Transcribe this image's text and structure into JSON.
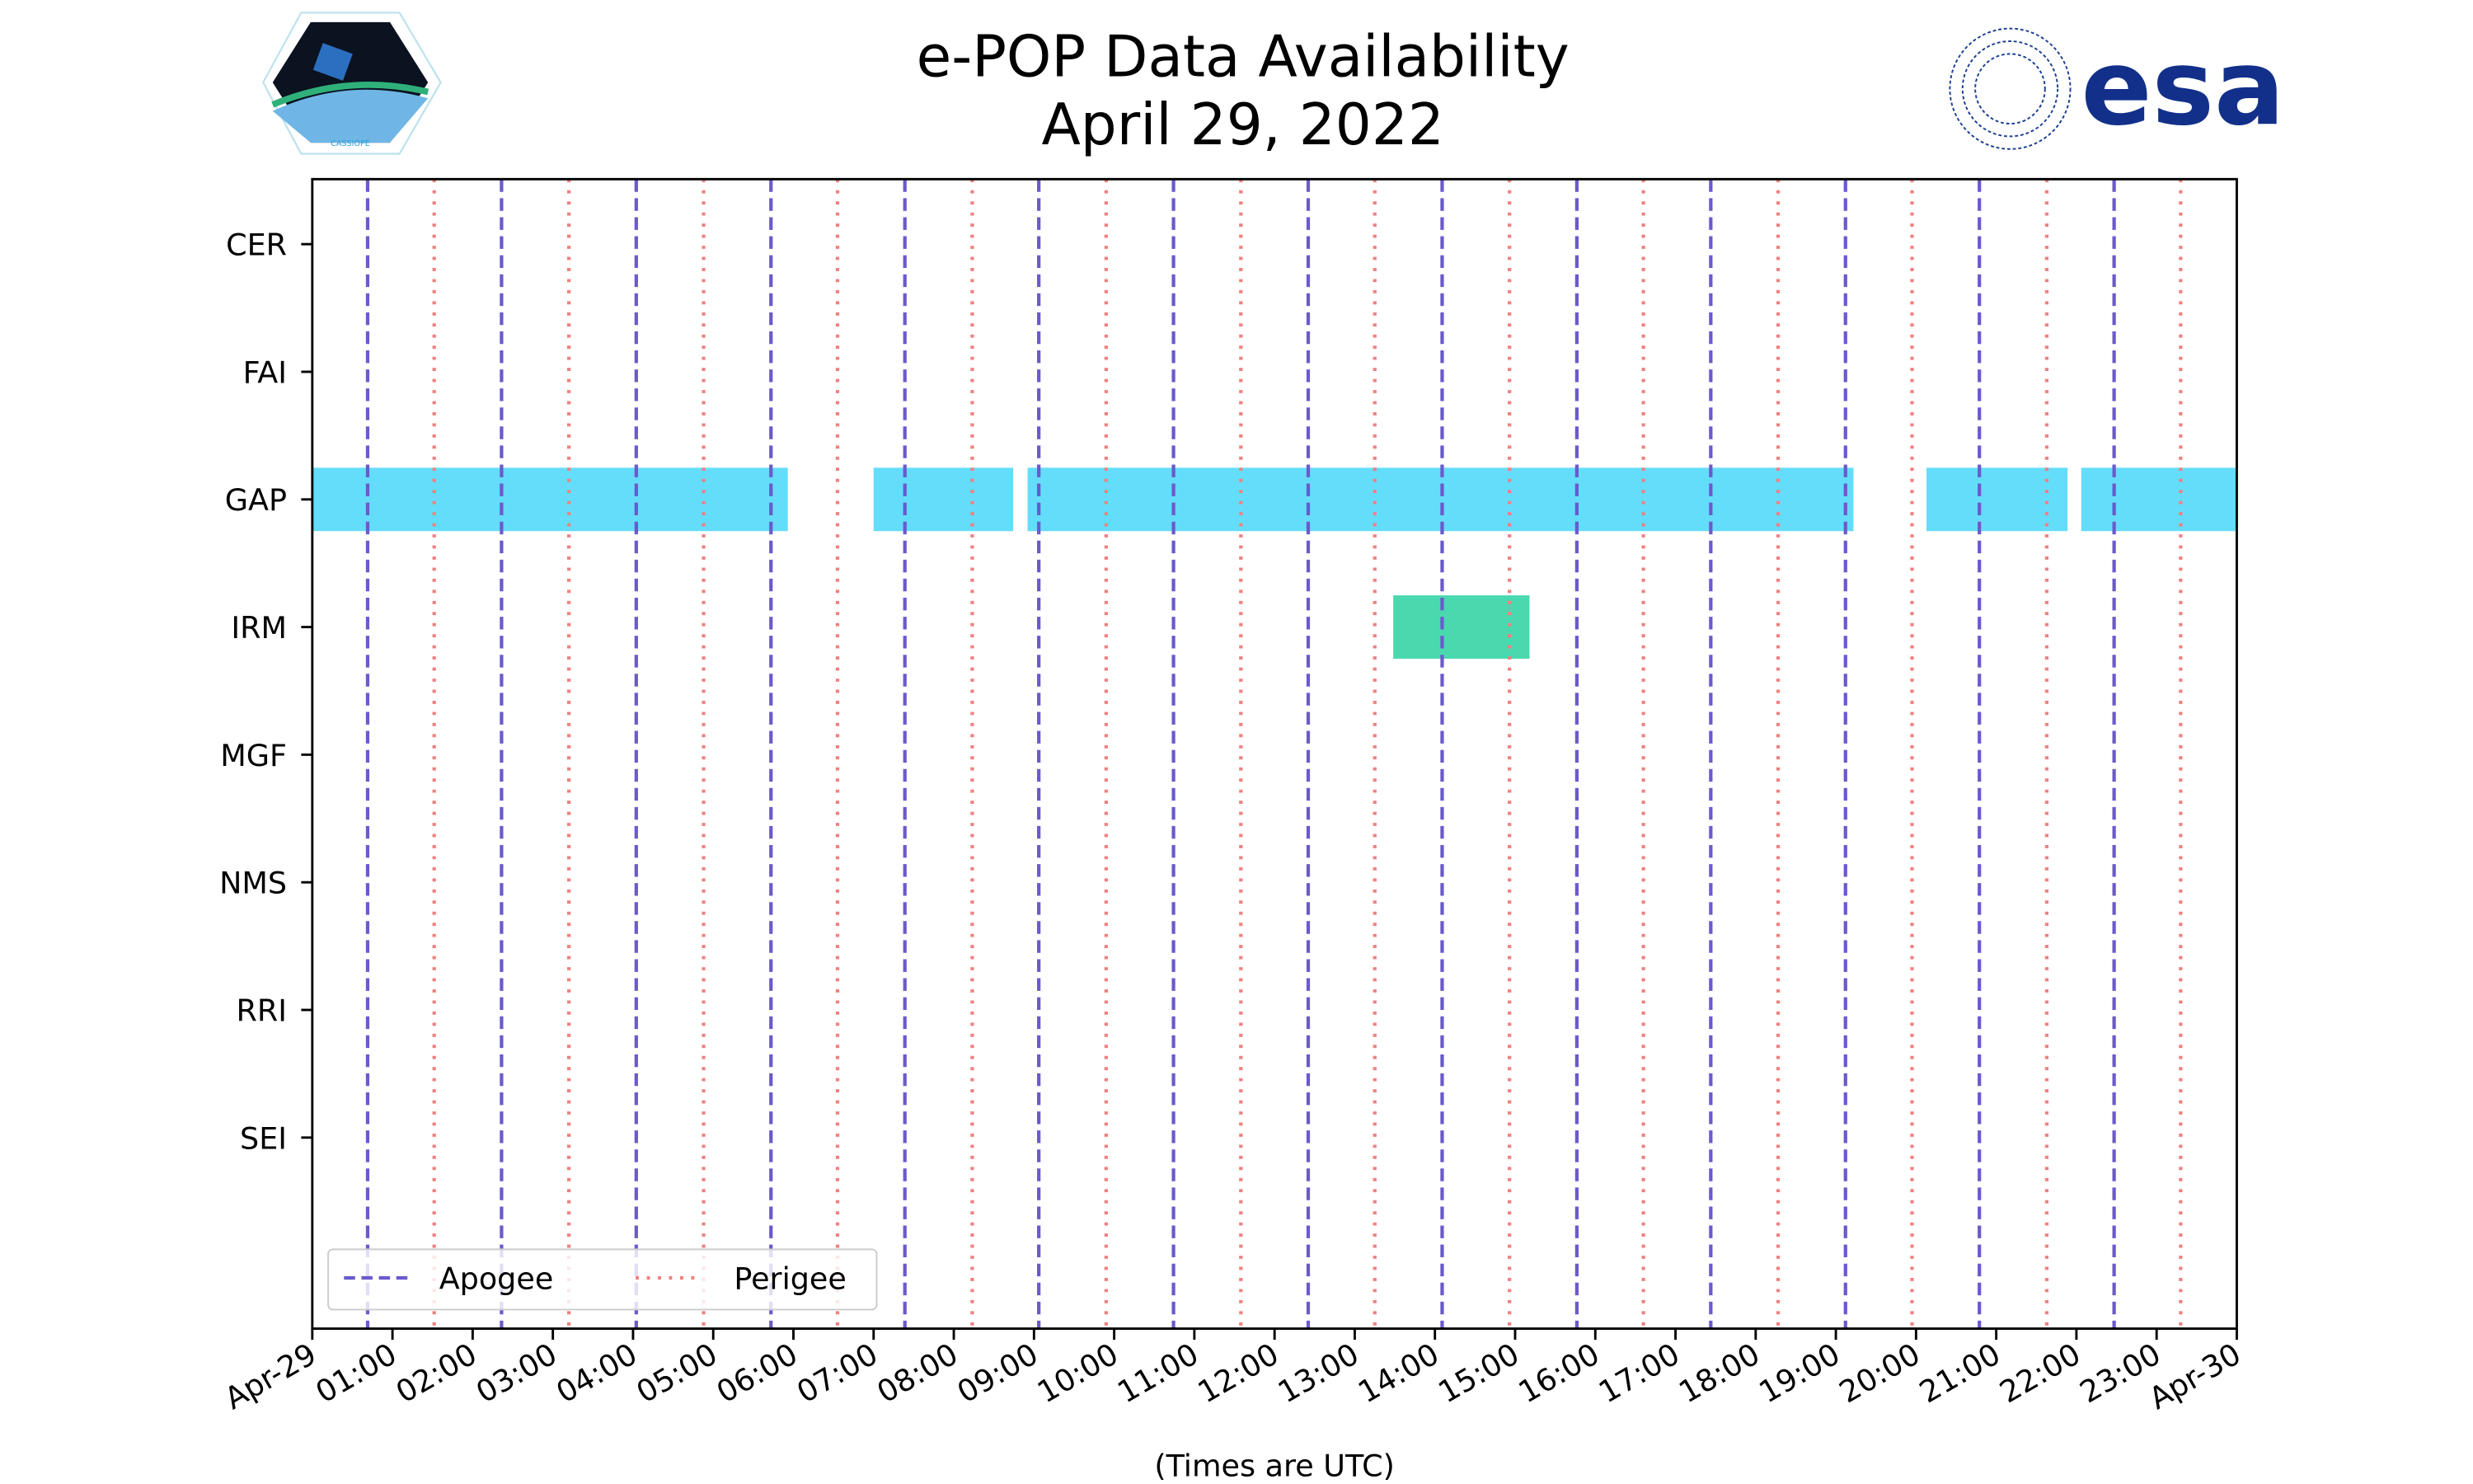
{
  "chart_data": {
    "type": "timeline",
    "title": "e-POP Data Availability",
    "subtitle": "April 29, 2022",
    "xlabel": "(Times are UTC)",
    "xlim_hours": [
      0,
      24
    ],
    "x_tick_labels": [
      "Apr-29",
      "01:00",
      "02:00",
      "03:00",
      "04:00",
      "05:00",
      "06:00",
      "07:00",
      "08:00",
      "09:00",
      "10:00",
      "11:00",
      "12:00",
      "13:00",
      "14:00",
      "15:00",
      "16:00",
      "17:00",
      "18:00",
      "19:00",
      "20:00",
      "21:00",
      "22:00",
      "23:00",
      "Apr-30"
    ],
    "instruments": [
      "CER",
      "FAI",
      "GAP",
      "IRM",
      "MGF",
      "NMS",
      "RRI",
      "SEI"
    ],
    "availability": [
      {
        "instrument": "GAP",
        "start_h": 0.0,
        "end_h": 5.93,
        "color": "#4dd8fa"
      },
      {
        "instrument": "GAP",
        "start_h": 7.0,
        "end_h": 8.74,
        "color": "#4dd8fa"
      },
      {
        "instrument": "GAP",
        "start_h": 8.92,
        "end_h": 19.22,
        "color": "#4dd8fa"
      },
      {
        "instrument": "GAP",
        "start_h": 20.13,
        "end_h": 21.89,
        "color": "#4dd8fa"
      },
      {
        "instrument": "GAP",
        "start_h": 22.06,
        "end_h": 24.0,
        "color": "#4dd8fa"
      },
      {
        "instrument": "IRM",
        "start_h": 13.48,
        "end_h": 15.18,
        "color": "#2fd3a3"
      }
    ],
    "apogee_hours": [
      0.69,
      2.36,
      4.04,
      5.72,
      7.39,
      9.06,
      10.74,
      12.42,
      14.09,
      15.77,
      17.44,
      19.12,
      20.79,
      22.47
    ],
    "perigee_hours": [
      1.52,
      3.2,
      4.88,
      6.55,
      8.23,
      9.9,
      11.58,
      13.25,
      14.93,
      16.6,
      18.28,
      19.95,
      21.63,
      23.3
    ],
    "legend": {
      "placement": "lower-left",
      "entries": [
        "Apogee",
        "Perigee"
      ]
    },
    "colors": {
      "apogee": "#6a5acd",
      "perigee": "#f08080"
    }
  },
  "logos": {
    "left": "CASSIOPE",
    "right": "esa"
  }
}
